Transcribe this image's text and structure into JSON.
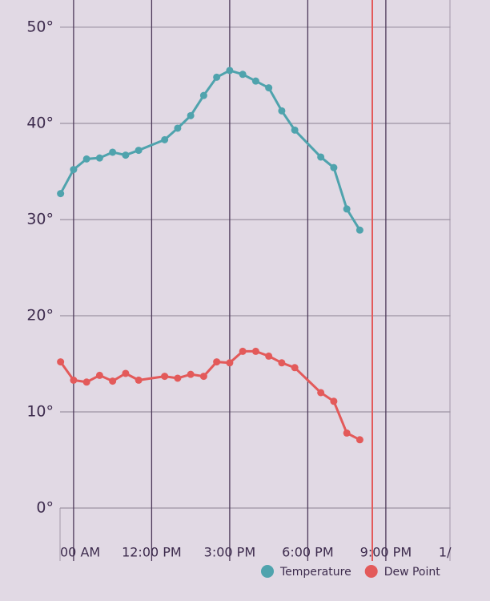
{
  "chart_data": {
    "type": "line",
    "x": [
      8.5,
      9,
      9.5,
      10,
      10.5,
      11,
      11.5,
      12.5,
      13,
      13.5,
      14,
      14.5,
      15,
      15.5,
      16,
      16.5,
      17,
      17.5,
      18.5,
      19,
      19.5,
      20
    ],
    "series": [
      {
        "name": "Temperature",
        "color": "#4fa3ad",
        "values": [
          32.7,
          35.2,
          36.3,
          36.4,
          37.0,
          36.7,
          37.2,
          38.3,
          39.5,
          40.8,
          42.9,
          44.8,
          45.5,
          45.1,
          44.4,
          43.7,
          41.3,
          39.3,
          36.5,
          35.4,
          31.1,
          28.9
        ]
      },
      {
        "name": "Dew Point",
        "color": "#e35a5a",
        "values": [
          15.2,
          13.3,
          13.1,
          13.8,
          13.2,
          14.0,
          13.3,
          13.7,
          13.5,
          13.9,
          13.7,
          15.2,
          15.1,
          16.3,
          16.3,
          15.8,
          15.1,
          14.6,
          12.0,
          11.1,
          7.8,
          7.1
        ]
      }
    ],
    "xlim": [
      8.48,
      23.48
    ],
    "xticks": [
      {
        "value": 9,
        "label": "00 AM"
      },
      {
        "value": 12,
        "label": "12:00 PM"
      },
      {
        "value": 15,
        "label": "3:00 PM"
      },
      {
        "value": 18,
        "label": "6:00 PM"
      },
      {
        "value": 21,
        "label": "9:00 PM"
      },
      {
        "value": 24,
        "label": "1/"
      }
    ],
    "ylim": [
      -5.5,
      52.83
    ],
    "yticks": [
      {
        "value": 0,
        "label": "0°"
      },
      {
        "value": 10,
        "label": "10°"
      },
      {
        "value": 20,
        "label": "20°"
      },
      {
        "value": 30,
        "label": "30°"
      },
      {
        "value": 40,
        "label": "40°"
      },
      {
        "value": 50,
        "label": "50°"
      }
    ],
    "now_line": 20.48,
    "now_color": "#e35a5a",
    "grid": true,
    "legend": "bottom-right"
  }
}
